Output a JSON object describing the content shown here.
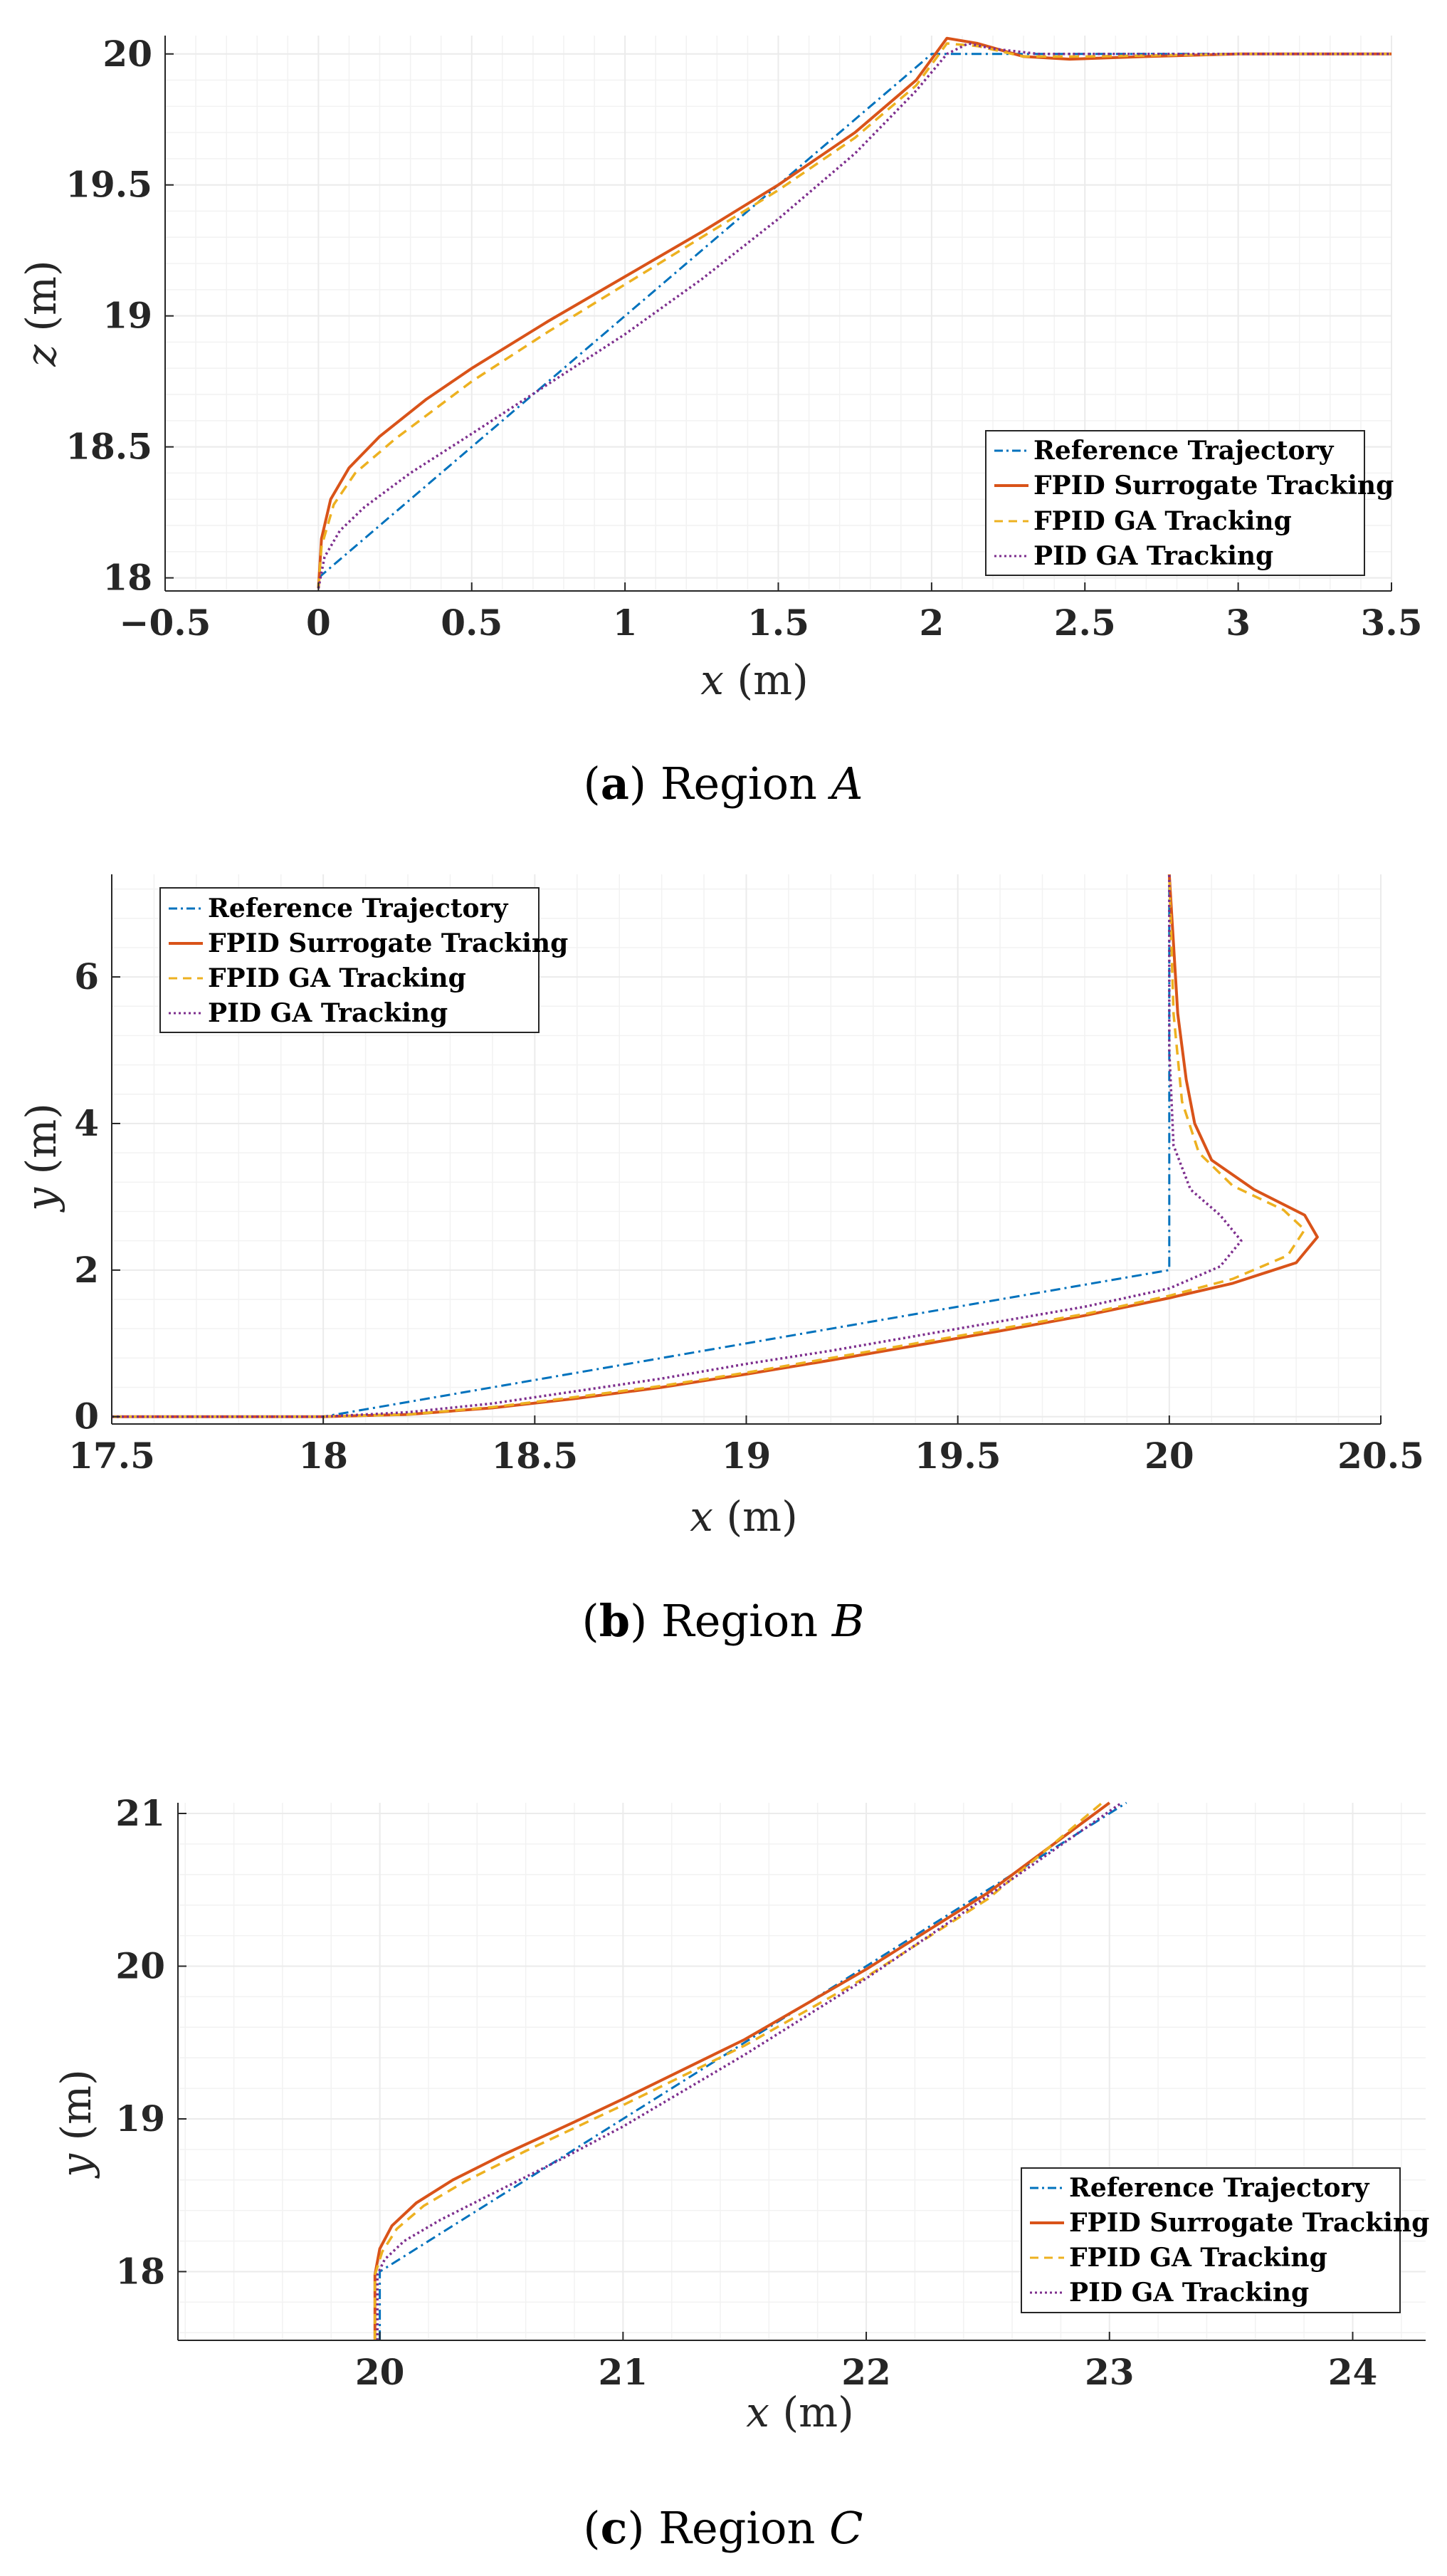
{
  "colors": {
    "reference": "#0072BD",
    "fpid_surrogate": "#D95319",
    "fpid_ga": "#EDB120",
    "pid_ga": "#7E2F8E",
    "grid": "#ebebeb",
    "axis": "#262626"
  },
  "chart_data": [
    {
      "id": "A",
      "type": "line",
      "caption": {
        "letter": "a",
        "text": "Region",
        "region": "A"
      },
      "xlabel": {
        "var": "x",
        "unit": "(m)"
      },
      "ylabel": {
        "var": "z",
        "unit": "(m)"
      },
      "xlim": [
        -0.5,
        3.5
      ],
      "ylim": [
        17.95,
        20.07
      ],
      "xticks": [
        -0.5,
        0,
        0.5,
        1,
        1.5,
        2,
        2.5,
        3,
        3.5
      ],
      "xtick_labels": [
        "−0.5",
        "0",
        "0.5",
        "1",
        "1.5",
        "2",
        "2.5",
        "3",
        "3.5"
      ],
      "yticks": [
        18,
        18.5,
        19,
        19.5,
        20
      ],
      "ytick_labels": [
        "18",
        "18.5",
        "19",
        "19.5",
        "20"
      ],
      "grid": true,
      "legend_position": "bottom-right",
      "series": [
        {
          "name": "Reference Trajectory",
          "style": "dashdot",
          "color": "#0072BD",
          "points": [
            [
              0,
              18
            ],
            [
              2,
              20
            ],
            [
              3.5,
              20
            ]
          ]
        },
        {
          "name": "FPID Surrogate Tracking",
          "style": "solid",
          "color": "#D95319",
          "points": [
            [
              0,
              17.96
            ],
            [
              0.01,
              18.15
            ],
            [
              0.04,
              18.3
            ],
            [
              0.1,
              18.42
            ],
            [
              0.2,
              18.54
            ],
            [
              0.35,
              18.68
            ],
            [
              0.5,
              18.8
            ],
            [
              0.75,
              18.98
            ],
            [
              1,
              19.15
            ],
            [
              1.25,
              19.32
            ],
            [
              1.5,
              19.5
            ],
            [
              1.75,
              19.7
            ],
            [
              1.95,
              19.9
            ],
            [
              2.05,
              20.06
            ],
            [
              2.15,
              20.04
            ],
            [
              2.3,
              19.99
            ],
            [
              2.45,
              19.98
            ],
            [
              2.7,
              19.99
            ],
            [
              3,
              20
            ],
            [
              3.5,
              20
            ]
          ]
        },
        {
          "name": "FPID GA Tracking",
          "style": "dashed",
          "color": "#EDB120",
          "points": [
            [
              0,
              17.96
            ],
            [
              0.01,
              18.12
            ],
            [
              0.05,
              18.28
            ],
            [
              0.12,
              18.4
            ],
            [
              0.25,
              18.53
            ],
            [
              0.5,
              18.75
            ],
            [
              0.75,
              18.94
            ],
            [
              1,
              19.12
            ],
            [
              1.25,
              19.3
            ],
            [
              1.5,
              19.48
            ],
            [
              1.75,
              19.68
            ],
            [
              1.95,
              19.88
            ],
            [
              2.05,
              20.04
            ],
            [
              2.15,
              20.03
            ],
            [
              2.3,
              19.99
            ],
            [
              2.5,
              19.99
            ],
            [
              3,
              20
            ],
            [
              3.5,
              20
            ]
          ]
        },
        {
          "name": "PID GA Tracking",
          "style": "dotted",
          "color": "#7E2F8E",
          "points": [
            [
              0,
              17.96
            ],
            [
              0.02,
              18.08
            ],
            [
              0.07,
              18.18
            ],
            [
              0.15,
              18.27
            ],
            [
              0.3,
              18.4
            ],
            [
              0.5,
              18.55
            ],
            [
              0.75,
              18.74
            ],
            [
              1,
              18.93
            ],
            [
              1.25,
              19.14
            ],
            [
              1.5,
              19.37
            ],
            [
              1.75,
              19.62
            ],
            [
              1.95,
              19.86
            ],
            [
              2.05,
              20
            ],
            [
              2.12,
              20.04
            ],
            [
              2.2,
              20.02
            ],
            [
              2.35,
              20
            ],
            [
              3,
              20
            ],
            [
              3.5,
              20
            ]
          ]
        }
      ]
    },
    {
      "id": "B",
      "type": "line",
      "caption": {
        "letter": "b",
        "text": "Region",
        "region": "B"
      },
      "xlabel": {
        "var": "x",
        "unit": "(m)"
      },
      "ylabel": {
        "var": "y",
        "unit": "(m)"
      },
      "xlim": [
        17.5,
        20.5
      ],
      "ylim": [
        -0.1,
        7.4
      ],
      "xticks": [
        17.5,
        18,
        18.5,
        19,
        19.5,
        20,
        20.5
      ],
      "xtick_labels": [
        "17.5",
        "18",
        "18.5",
        "19",
        "19.5",
        "20",
        "20.5"
      ],
      "yticks": [
        0,
        2,
        4,
        6
      ],
      "ytick_labels": [
        "0",
        "2",
        "4",
        "6"
      ],
      "grid": true,
      "legend_position": "top-left",
      "series": [
        {
          "name": "Reference Trajectory",
          "style": "dashdot",
          "color": "#0072BD",
          "points": [
            [
              17.5,
              0
            ],
            [
              18,
              0
            ],
            [
              20,
              2
            ],
            [
              20,
              7.4
            ]
          ]
        },
        {
          "name": "FPID Surrogate Tracking",
          "style": "solid",
          "color": "#D95319",
          "points": [
            [
              17.5,
              0
            ],
            [
              18,
              0
            ],
            [
              18.2,
              0.03
            ],
            [
              18.4,
              0.12
            ],
            [
              18.6,
              0.25
            ],
            [
              18.8,
              0.4
            ],
            [
              19,
              0.58
            ],
            [
              19.2,
              0.77
            ],
            [
              19.4,
              0.97
            ],
            [
              19.6,
              1.17
            ],
            [
              19.8,
              1.38
            ],
            [
              20,
              1.62
            ],
            [
              20.15,
              1.82
            ],
            [
              20.3,
              2.1
            ],
            [
              20.35,
              2.45
            ],
            [
              20.32,
              2.75
            ],
            [
              20.2,
              3.1
            ],
            [
              20.1,
              3.5
            ],
            [
              20.06,
              4
            ],
            [
              20.04,
              4.6
            ],
            [
              20.02,
              5.5
            ],
            [
              20,
              7.4
            ]
          ]
        },
        {
          "name": "FPID GA Tracking",
          "style": "dashed",
          "color": "#EDB120",
          "points": [
            [
              17.5,
              0
            ],
            [
              18,
              0
            ],
            [
              18.2,
              0.03
            ],
            [
              18.4,
              0.13
            ],
            [
              18.6,
              0.27
            ],
            [
              18.8,
              0.42
            ],
            [
              19,
              0.6
            ],
            [
              19.2,
              0.8
            ],
            [
              19.4,
              1
            ],
            [
              19.6,
              1.2
            ],
            [
              19.8,
              1.4
            ],
            [
              20,
              1.65
            ],
            [
              20.15,
              1.88
            ],
            [
              20.28,
              2.2
            ],
            [
              20.32,
              2.55
            ],
            [
              20.27,
              2.82
            ],
            [
              20.15,
              3.15
            ],
            [
              20.07,
              3.6
            ],
            [
              20.03,
              4.3
            ],
            [
              20.01,
              5.5
            ],
            [
              20,
              7.4
            ]
          ]
        },
        {
          "name": "PID GA Tracking",
          "style": "dotted",
          "color": "#7E2F8E",
          "points": [
            [
              17.5,
              0
            ],
            [
              18,
              0
            ],
            [
              18.2,
              0.06
            ],
            [
              18.4,
              0.18
            ],
            [
              18.6,
              0.35
            ],
            [
              18.8,
              0.52
            ],
            [
              19,
              0.72
            ],
            [
              19.2,
              0.9
            ],
            [
              19.4,
              1.1
            ],
            [
              19.6,
              1.3
            ],
            [
              19.8,
              1.5
            ],
            [
              20,
              1.75
            ],
            [
              20.12,
              2.05
            ],
            [
              20.17,
              2.4
            ],
            [
              20.12,
              2.75
            ],
            [
              20.05,
              3.1
            ],
            [
              20.01,
              3.7
            ],
            [
              20,
              5
            ],
            [
              20,
              7.4
            ]
          ]
        }
      ]
    },
    {
      "id": "C",
      "type": "line",
      "caption": {
        "letter": "c",
        "text": "Region",
        "region": "C"
      },
      "xlabel": {
        "var": "x",
        "unit": "(m)"
      },
      "ylabel": {
        "var": "y",
        "unit": "(m)"
      },
      "xlim": [
        19.17,
        24.3
      ],
      "ylim": [
        17.55,
        21.07
      ],
      "xticks": [
        20,
        21,
        22,
        23,
        24
      ],
      "xtick_labels": [
        "20",
        "21",
        "22",
        "23",
        "24"
      ],
      "yticks": [
        18,
        19,
        20,
        21
      ],
      "ytick_labels": [
        "18",
        "19",
        "20",
        "21"
      ],
      "grid": true,
      "legend_position": "bottom-right",
      "series": [
        {
          "name": "Reference Trajectory",
          "style": "dashdot",
          "color": "#0072BD",
          "points": [
            [
              20,
              17.55
            ],
            [
              20,
              18
            ],
            [
              23.07,
              21.07
            ]
          ]
        },
        {
          "name": "FPID Surrogate Tracking",
          "style": "solid",
          "color": "#D95319",
          "points": [
            [
              19.98,
              17.55
            ],
            [
              19.98,
              17.98
            ],
            [
              20,
              18.15
            ],
            [
              20.05,
              18.3
            ],
            [
              20.15,
              18.45
            ],
            [
              20.3,
              18.6
            ],
            [
              20.5,
              18.76
            ],
            [
              20.8,
              18.98
            ],
            [
              21,
              19.13
            ],
            [
              21.5,
              19.52
            ],
            [
              22,
              19.98
            ],
            [
              22.5,
              20.48
            ],
            [
              23,
              21.07
            ]
          ]
        },
        {
          "name": "FPID GA Tracking",
          "style": "dashed",
          "color": "#EDB120",
          "points": [
            [
              19.98,
              17.55
            ],
            [
              19.98,
              17.98
            ],
            [
              20.01,
              18.13
            ],
            [
              20.07,
              18.28
            ],
            [
              20.18,
              18.43
            ],
            [
              20.35,
              18.59
            ],
            [
              20.6,
              18.79
            ],
            [
              21,
              19.09
            ],
            [
              21.5,
              19.48
            ],
            [
              22,
              19.93
            ],
            [
              22.5,
              20.44
            ],
            [
              22.97,
              21.07
            ]
          ]
        },
        {
          "name": "PID GA Tracking",
          "style": "dotted",
          "color": "#7E2F8E",
          "points": [
            [
              19.99,
              17.55
            ],
            [
              19.99,
              17.98
            ],
            [
              20.02,
              18.08
            ],
            [
              20.1,
              18.2
            ],
            [
              20.25,
              18.34
            ],
            [
              20.5,
              18.54
            ],
            [
              20.75,
              18.74
            ],
            [
              21,
              18.95
            ],
            [
              21.5,
              19.42
            ],
            [
              22,
              19.92
            ],
            [
              22.5,
              20.46
            ],
            [
              23.05,
              21.07
            ]
          ]
        }
      ]
    }
  ]
}
